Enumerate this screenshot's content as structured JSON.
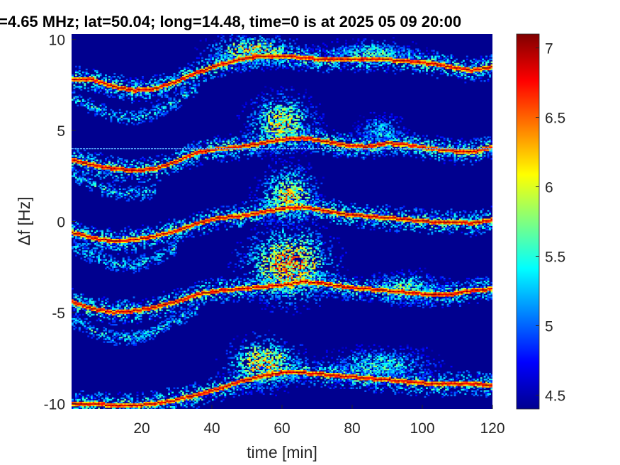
{
  "chart_data": {
    "type": "heatmap",
    "title": "=4.65 MHz;  lat=50.04; long=14.48, time=0 is at 2025 05 09 20:00",
    "xlabel": "time [min]",
    "ylabel": "Δf [Hz]",
    "xlim": [
      0,
      120
    ],
    "ylim": [
      -10.3,
      10.3
    ],
    "xticks": [
      20,
      40,
      60,
      80,
      100,
      120
    ],
    "yticks": [
      10,
      5,
      0,
      -5,
      -10
    ],
    "ytick_labels": [
      "10",
      "5",
      "0",
      "-5",
      "-10"
    ],
    "colorbar": {
      "clim": [
        4.4,
        7.1
      ],
      "ticks": [
        4.5,
        5,
        5.5,
        6,
        6.5,
        7
      ],
      "tick_labels": [
        "4.5",
        "5",
        "5.5",
        "6",
        "6.5",
        "7"
      ],
      "colormap": "jet"
    },
    "background_color": "#00008f",
    "constant_line": {
      "y": 4.0,
      "color": "#5ab0ff"
    },
    "traces": [
      {
        "name": "",
        "t": [
          0,
          6,
          12,
          18,
          24,
          30,
          36,
          42,
          48,
          54,
          60,
          66,
          72,
          78,
          84,
          90,
          96,
          102,
          108,
          114,
          120
        ],
        "f": [
          7.8,
          7.8,
          7.4,
          7.2,
          7.3,
          7.7,
          8.2,
          8.6,
          8.9,
          9.1,
          9.1,
          9.0,
          8.9,
          8.9,
          8.9,
          8.9,
          8.8,
          8.7,
          8.5,
          8.3,
          8.5
        ]
      },
      {
        "name": "",
        "t": [
          0,
          6,
          12,
          18,
          24,
          30,
          36,
          42,
          48,
          54,
          60,
          66,
          72,
          78,
          84,
          90,
          96,
          102,
          108,
          114,
          120
        ],
        "f": [
          3.4,
          3.1,
          2.9,
          2.8,
          2.9,
          3.3,
          3.8,
          4.0,
          4.1,
          4.3,
          4.5,
          4.6,
          4.4,
          4.2,
          4.1,
          4.3,
          4.2,
          4.0,
          3.9,
          3.8,
          4.1
        ]
      },
      {
        "name": "",
        "t": [
          0,
          6,
          12,
          18,
          24,
          30,
          36,
          42,
          48,
          54,
          60,
          66,
          72,
          78,
          84,
          90,
          96,
          102,
          108,
          114,
          120
        ],
        "f": [
          -0.6,
          -0.9,
          -1.1,
          -1.0,
          -0.8,
          -0.5,
          -0.1,
          0.2,
          0.3,
          0.5,
          0.7,
          0.8,
          0.6,
          0.4,
          0.3,
          0.2,
          0.1,
          0.0,
          0.0,
          -0.1,
          0.1
        ]
      },
      {
        "name": "",
        "t": [
          0,
          6,
          12,
          18,
          24,
          30,
          36,
          42,
          48,
          54,
          60,
          66,
          72,
          78,
          84,
          90,
          96,
          102,
          108,
          114,
          120
        ],
        "f": [
          -4.4,
          -4.8,
          -5.0,
          -4.9,
          -4.7,
          -4.4,
          -4.0,
          -3.8,
          -3.7,
          -3.6,
          -3.5,
          -3.3,
          -3.4,
          -3.6,
          -3.7,
          -3.8,
          -3.9,
          -4.0,
          -4.0,
          -3.8,
          -3.7
        ]
      },
      {
        "name": "",
        "t": [
          0,
          6,
          12,
          18,
          24,
          30,
          36,
          42,
          48,
          54,
          60,
          66,
          72,
          78,
          84,
          90,
          96,
          102,
          108,
          114,
          120
        ],
        "f": [
          -10.0,
          -10.0,
          -10.1,
          -10.1,
          -10.0,
          -9.8,
          -9.5,
          -9.2,
          -8.8,
          -8.5,
          -8.3,
          -8.3,
          -8.4,
          -8.5,
          -8.6,
          -8.7,
          -8.8,
          -8.9,
          -8.9,
          -8.9,
          -9.0
        ]
      }
    ],
    "echoes": [
      {
        "t": [
          0,
          6,
          12,
          18,
          24,
          30,
          36
        ],
        "f": [
          6.8,
          6.3,
          5.8,
          5.7,
          6.0,
          6.6,
          7.4
        ]
      },
      {
        "t": [
          0,
          6,
          12,
          18,
          24
        ],
        "f": [
          2.6,
          2.0,
          1.6,
          1.5,
          1.7
        ]
      },
      {
        "t": [
          0,
          6,
          12,
          18,
          24,
          30
        ],
        "f": [
          -1.4,
          -1.9,
          -2.3,
          -2.4,
          -2.0,
          -1.4
        ]
      },
      {
        "t": [
          0,
          6,
          12,
          18,
          24,
          30,
          36
        ],
        "f": [
          -5.4,
          -6.0,
          -6.4,
          -6.4,
          -6.0,
          -5.4,
          -4.8
        ]
      }
    ],
    "blobs": [
      {
        "t": 52,
        "f": 9.4,
        "rt": 12,
        "rf": 0.8,
        "v": 6.1
      },
      {
        "t": 85,
        "f": 9.3,
        "rt": 12,
        "rf": 0.6,
        "v": 5.5
      },
      {
        "t": 60,
        "f": 5.4,
        "rt": 9,
        "rf": 1.5,
        "v": 6.0
      },
      {
        "t": 88,
        "f": 5.0,
        "rt": 6,
        "rf": 0.8,
        "v": 5.3
      },
      {
        "t": 62,
        "f": 1.4,
        "rt": 8,
        "rf": 1.5,
        "v": 6.1
      },
      {
        "t": 62,
        "f": -2.4,
        "rt": 12,
        "rf": 1.9,
        "v": 6.4
      },
      {
        "t": 95,
        "f": -3.6,
        "rt": 10,
        "rf": 0.8,
        "v": 5.6
      },
      {
        "t": 55,
        "f": -7.8,
        "rt": 10,
        "rf": 1.3,
        "v": 6.2
      },
      {
        "t": 88,
        "f": -7.9,
        "rt": 14,
        "rf": 0.9,
        "v": 5.5
      }
    ]
  }
}
